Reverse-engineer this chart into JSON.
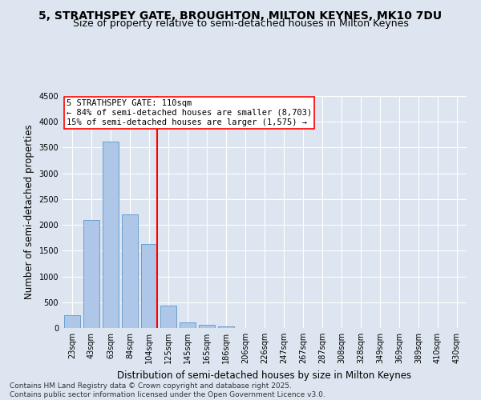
{
  "title": "5, STRATHSPEY GATE, BROUGHTON, MILTON KEYNES, MK10 7DU",
  "subtitle": "Size of property relative to semi-detached houses in Milton Keynes",
  "xlabel": "Distribution of semi-detached houses by size in Milton Keynes",
  "ylabel": "Number of semi-detached properties",
  "categories": [
    "23sqm",
    "43sqm",
    "63sqm",
    "84sqm",
    "104sqm",
    "125sqm",
    "145sqm",
    "165sqm",
    "186sqm",
    "206sqm",
    "226sqm",
    "247sqm",
    "267sqm",
    "287sqm",
    "308sqm",
    "328sqm",
    "349sqm",
    "369sqm",
    "389sqm",
    "410sqm",
    "430sqm"
  ],
  "values": [
    250,
    2100,
    3620,
    2210,
    1630,
    440,
    110,
    55,
    30,
    0,
    0,
    0,
    0,
    0,
    0,
    0,
    0,
    0,
    0,
    0,
    0
  ],
  "bar_color": "#aec6e8",
  "bar_edge_color": "#6a9fd0",
  "vline_color": "red",
  "vline_index": 4,
  "annotation_title": "5 STRATHSPEY GATE: 110sqm",
  "annotation_line1": "← 84% of semi-detached houses are smaller (8,703)",
  "annotation_line2": "15% of semi-detached houses are larger (1,575) →",
  "annotation_box_color": "white",
  "annotation_box_edge": "red",
  "ylim": [
    0,
    4500
  ],
  "yticks": [
    0,
    500,
    1000,
    1500,
    2000,
    2500,
    3000,
    3500,
    4000,
    4500
  ],
  "bg_color": "#dde6f0",
  "plot_bg_color": "#dde6f0",
  "grid_color": "white",
  "footer_line1": "Contains HM Land Registry data © Crown copyright and database right 2025.",
  "footer_line2": "Contains public sector information licensed under the Open Government Licence v3.0.",
  "title_fontsize": 10,
  "subtitle_fontsize": 9,
  "axis_label_fontsize": 8.5,
  "tick_fontsize": 7,
  "annotation_fontsize": 7.5,
  "footer_fontsize": 6.5
}
